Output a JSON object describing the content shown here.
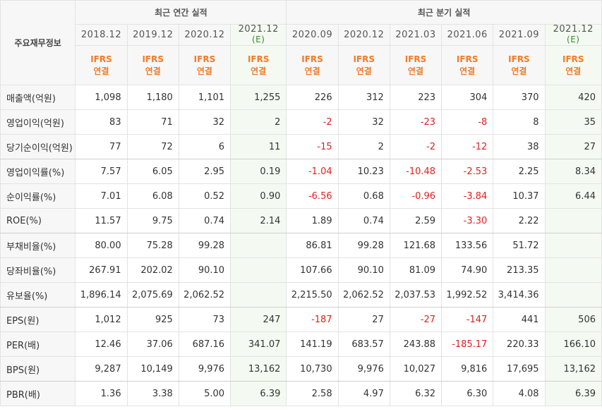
{
  "table": {
    "corner_label": "주요재무정보",
    "group_annual": "최근 연간 실적",
    "group_quarter": "최근 분기 실적",
    "columns": [
      {
        "period": "2018.12",
        "est": "",
        "ifrs": "IFRS",
        "basis": "연결"
      },
      {
        "period": "2019.12",
        "est": "",
        "ifrs": "IFRS",
        "basis": "연결"
      },
      {
        "period": "2020.12",
        "est": "",
        "ifrs": "IFRS",
        "basis": "연결"
      },
      {
        "period": "2021.12",
        "est": "(E)",
        "ifrs": "IFRS",
        "basis": "연결"
      },
      {
        "period": "2020.09",
        "est": "",
        "ifrs": "IFRS",
        "basis": "연결"
      },
      {
        "period": "2020.12",
        "est": "",
        "ifrs": "IFRS",
        "basis": "연결"
      },
      {
        "period": "2021.03",
        "est": "",
        "ifrs": "IFRS",
        "basis": "연결"
      },
      {
        "period": "2021.06",
        "est": "",
        "ifrs": "IFRS",
        "basis": "연결"
      },
      {
        "period": "2021.09",
        "est": "",
        "ifrs": "IFRS",
        "basis": "연결"
      },
      {
        "period": "2021.12",
        "est": "(E)",
        "ifrs": "IFRS",
        "basis": "연결"
      }
    ],
    "rows": [
      {
        "label": "매출액(억원)",
        "values": [
          "1,098",
          "1,180",
          "1,101",
          "1,255",
          "226",
          "312",
          "223",
          "304",
          "370",
          "420"
        ]
      },
      {
        "label": "영업이익(억원)",
        "values": [
          "83",
          "71",
          "32",
          "2",
          "-2",
          "32",
          "-23",
          "-8",
          "8",
          "35"
        ]
      },
      {
        "label": "당기순이익(억원)",
        "values": [
          "77",
          "72",
          "6",
          "11",
          "-15",
          "2",
          "-2",
          "-12",
          "38",
          "27"
        ]
      },
      {
        "label": "영업이익률(%)",
        "values": [
          "7.57",
          "6.05",
          "2.95",
          "0.19",
          "-1.04",
          "10.23",
          "-10.48",
          "-2.53",
          "2.25",
          "8.34"
        ]
      },
      {
        "label": "순이익률(%)",
        "values": [
          "7.01",
          "6.08",
          "0.52",
          "0.90",
          "-6.56",
          "0.68",
          "-0.96",
          "-3.84",
          "10.37",
          "6.44"
        ]
      },
      {
        "label": "ROE(%)",
        "values": [
          "11.57",
          "9.75",
          "0.74",
          "2.14",
          "1.89",
          "0.74",
          "2.59",
          "-3.30",
          "2.22",
          ""
        ]
      },
      {
        "label": "부채비율(%)",
        "values": [
          "80.00",
          "75.28",
          "99.28",
          "",
          "86.81",
          "99.28",
          "121.68",
          "133.56",
          "51.72",
          ""
        ]
      },
      {
        "label": "당좌비율(%)",
        "values": [
          "267.91",
          "202.02",
          "90.10",
          "",
          "107.66",
          "90.10",
          "81.09",
          "74.90",
          "213.35",
          ""
        ]
      },
      {
        "label": "유보율(%)",
        "values": [
          "1,896.14",
          "2,075.69",
          "2,062.52",
          "",
          "2,215.50",
          "2,062.52",
          "2,037.53",
          "1,992.52",
          "3,414.36",
          ""
        ]
      },
      {
        "label": "EPS(원)",
        "values": [
          "1,012",
          "925",
          "73",
          "247",
          "-187",
          "27",
          "-27",
          "-147",
          "441",
          "506"
        ]
      },
      {
        "label": "PER(배)",
        "values": [
          "12.46",
          "37.06",
          "687.16",
          "341.07",
          "141.19",
          "683.57",
          "243.88",
          "-185.17",
          "220.33",
          "166.10"
        ]
      },
      {
        "label": "BPS(원)",
        "values": [
          "9,287",
          "10,149",
          "9,976",
          "13,162",
          "10,730",
          "9,976",
          "10,027",
          "9,816",
          "17,695",
          "13,162"
        ]
      },
      {
        "label": "PBR(배)",
        "values": [
          "1.36",
          "3.38",
          "5.00",
          "6.39",
          "2.58",
          "4.97",
          "6.32",
          "6.30",
          "4.08",
          "6.39"
        ]
      }
    ],
    "colors": {
      "negative": "#e02020",
      "ifrs": "#f07b2a",
      "estimate": "#3a8c2b",
      "estimate_bg": "#f4faf1"
    }
  }
}
